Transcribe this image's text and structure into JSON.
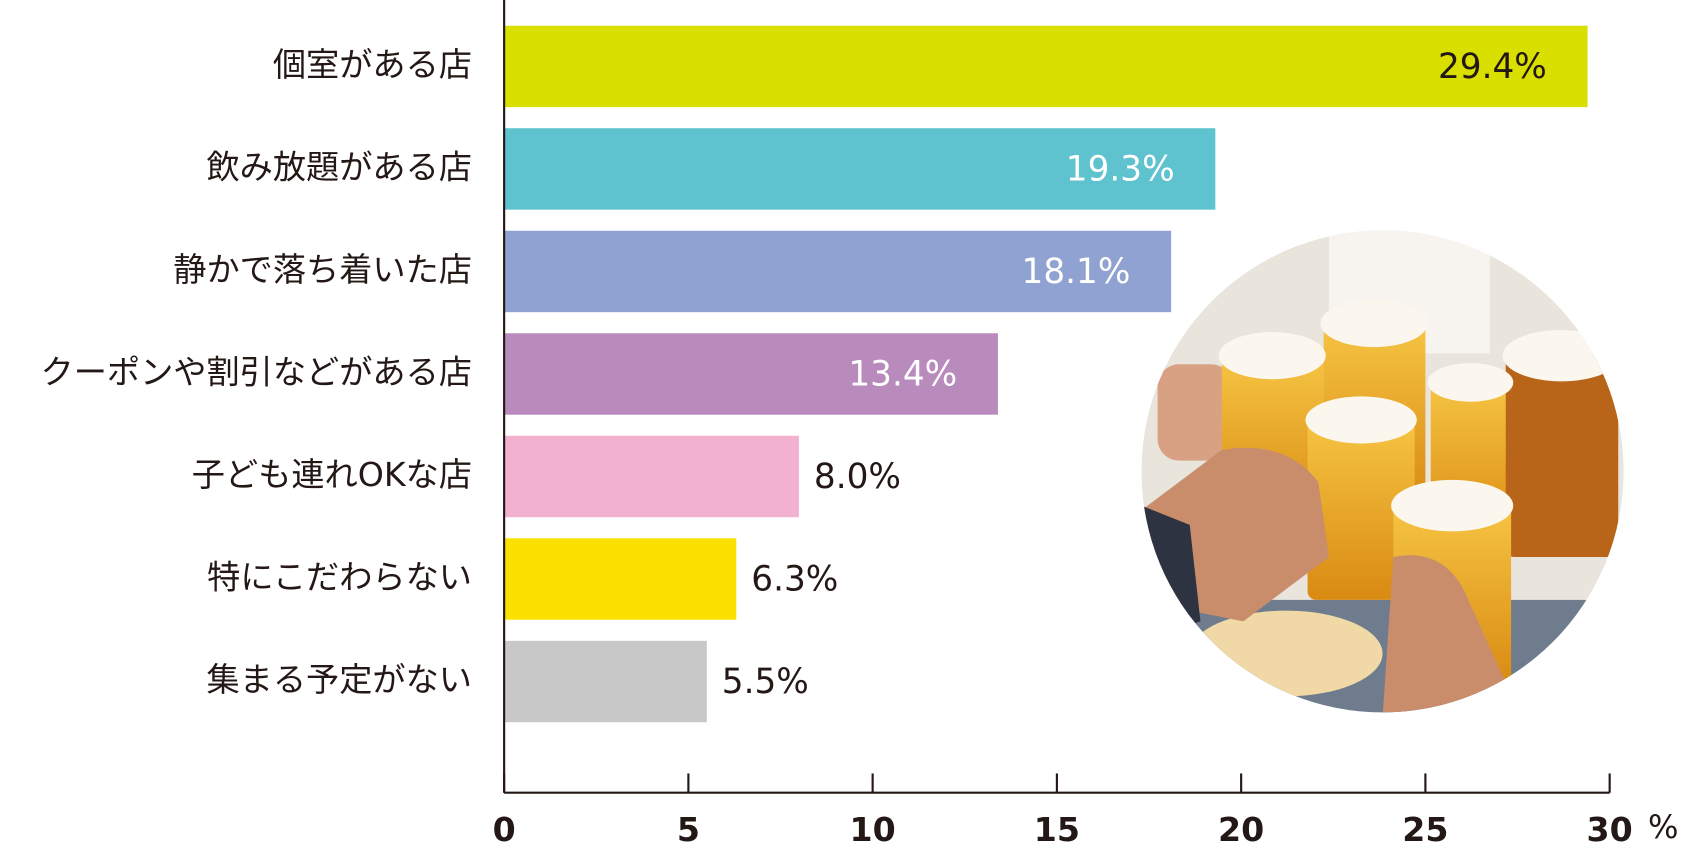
{
  "chart_data": {
    "type": "hbar",
    "categories": [
      "個室がある店",
      "飲み放題がある店",
      "静かで落ち着いた店",
      "クーポンや割引などがある店",
      "子ども連れOKな店",
      "特にこだわらない",
      "集まる予定がない"
    ],
    "values": [
      29.4,
      19.3,
      18.1,
      13.4,
      8.0,
      6.3,
      5.5
    ],
    "value_labels": [
      "29.4%",
      "19.3%",
      "18.1%",
      "13.4%",
      "8.0%",
      "6.3%",
      "5.5%"
    ],
    "colors": [
      "#d9e000",
      "#5ec2cf",
      "#8fa2d2",
      "#b98bbd",
      "#f2b1cf",
      "#fbe100",
      "#c8c8c8"
    ],
    "value_label_colors": [
      "#231815",
      "#ffffff",
      "#ffffff",
      "#ffffff",
      "#231815",
      "#231815",
      "#231815"
    ],
    "xlim": [
      0,
      30
    ],
    "xticks": [
      0,
      5,
      10,
      15,
      20,
      25,
      30
    ],
    "x_label": "%"
  }
}
